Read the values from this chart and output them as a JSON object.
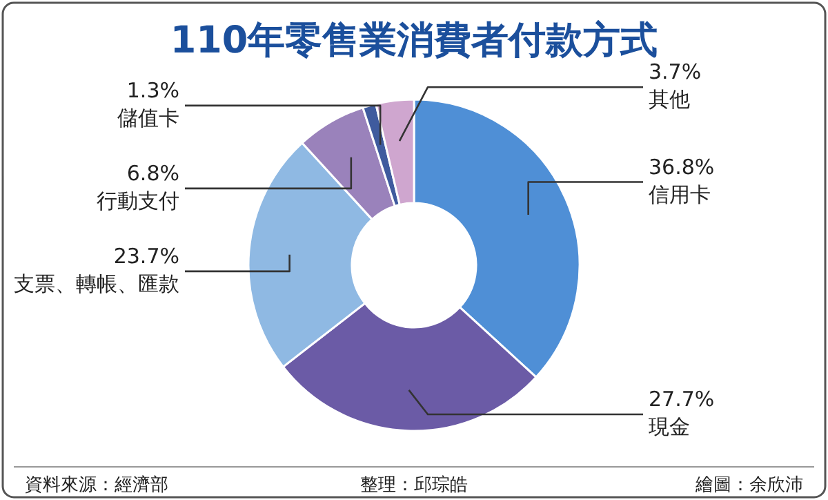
{
  "chart_data": {
    "type": "donut",
    "title": "110年零售業消費者付款方式",
    "categories": [
      "信用卡",
      "現金",
      "支票、轉帳、匯款",
      "行動支付",
      "儲值卡",
      "其他"
    ],
    "values": [
      36.8,
      27.7,
      23.7,
      6.8,
      1.3,
      3.7
    ],
    "value_labels": [
      "36.8%",
      "27.7%",
      "23.7%",
      "6.8%",
      "1.3%",
      "3.7%"
    ],
    "colors": [
      "#4f8fd6",
      "#6b5ba6",
      "#8fb9e3",
      "#9a82bb",
      "#3f5b9e",
      "#cfa6cf"
    ],
    "annotations": [
      "資料來源：經濟部",
      "整理：邱琮皓",
      "繪圖：余欣沛"
    ]
  }
}
